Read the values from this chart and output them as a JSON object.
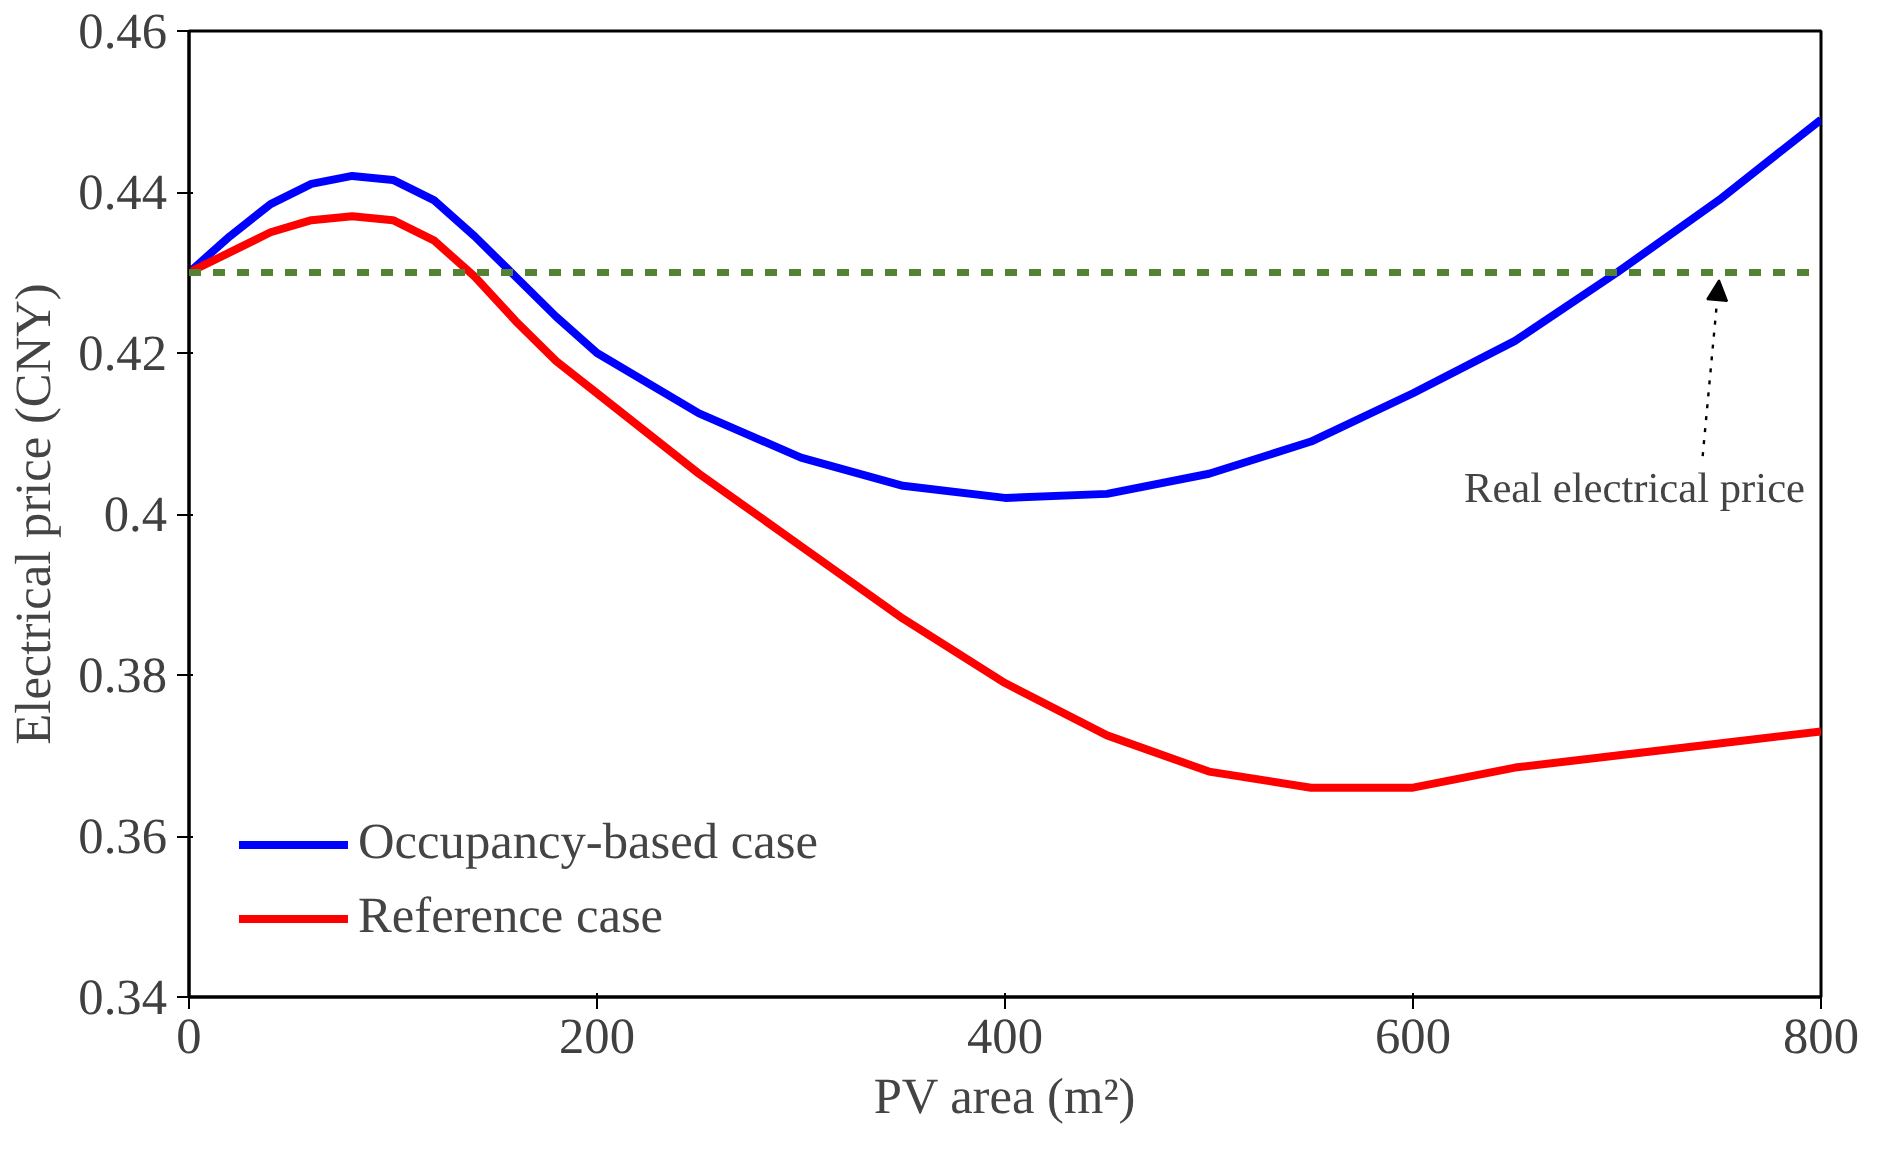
{
  "chart_data": {
    "type": "line",
    "xlabel": "PV area (m²)",
    "ylabel": "Electrical price (CNY)",
    "x": [
      0,
      20,
      40,
      60,
      80,
      100,
      120,
      140,
      160,
      180,
      200,
      250,
      300,
      350,
      400,
      450,
      500,
      550,
      600,
      650,
      700,
      750,
      800
    ],
    "series": [
      {
        "name": "Occupancy-based case",
        "color": "#0000ff",
        "values": [
          0.43,
          0.4345,
          0.4385,
          0.441,
          0.442,
          0.4415,
          0.439,
          0.4345,
          0.4295,
          0.4245,
          0.42,
          0.4125,
          0.407,
          0.4035,
          0.402,
          0.4025,
          0.405,
          0.409,
          0.415,
          0.4215,
          0.43,
          0.439,
          0.449
        ]
      },
      {
        "name": "Reference case",
        "color": "#ff0000",
        "values": [
          0.43,
          0.4325,
          0.435,
          0.4365,
          0.437,
          0.4365,
          0.434,
          0.4295,
          0.424,
          0.419,
          0.415,
          0.405,
          0.396,
          0.387,
          0.379,
          0.3725,
          0.368,
          0.366,
          0.366,
          0.3685,
          0.37,
          0.3715,
          0.373
        ]
      }
    ],
    "xlim": [
      0,
      800
    ],
    "xticks": [
      0,
      200,
      400,
      600,
      800
    ],
    "ylim": [
      0.34,
      0.46
    ],
    "yticks": [
      {
        "value": 0.34,
        "label": "0.34"
      },
      {
        "value": 0.36,
        "label": "0.36"
      },
      {
        "value": 0.38,
        "label": "0.38"
      },
      {
        "value": 0.4,
        "label": "0.4"
      },
      {
        "value": 0.42,
        "label": "0.42"
      },
      {
        "value": 0.44,
        "label": "0.44"
      },
      {
        "value": 0.46,
        "label": "0.46"
      }
    ],
    "ref_lines": [
      {
        "axis": "y",
        "value": 0.43,
        "color": "#548235",
        "line_style": "dashed"
      }
    ],
    "annotations": [
      {
        "text": "Real electrical price",
        "x": 750,
        "y": 0.43
      }
    ],
    "grid": false,
    "legend": "bottom left",
    "marker": "none",
    "line_style": "solid"
  }
}
